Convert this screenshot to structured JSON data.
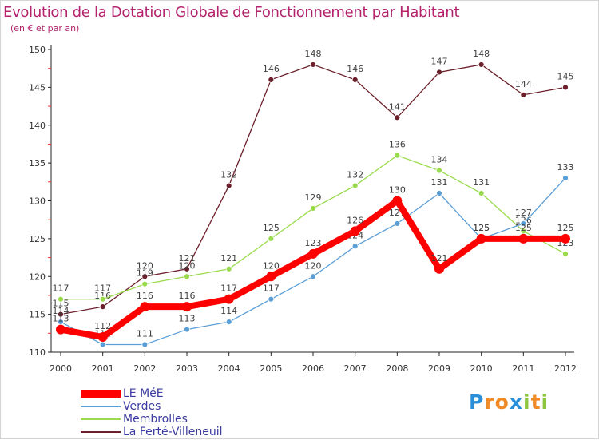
{
  "chart_data": {
    "type": "line",
    "title": "Evolution de la Dotation Globale de Fonctionnement par Habitant",
    "subtitle": "(en € et par an)",
    "xlabel": "",
    "ylabel": "",
    "categories": [
      "2000",
      "2001",
      "2002",
      "2003",
      "2004",
      "2005",
      "2006",
      "2007",
      "2008",
      "2009",
      "2010",
      "2011",
      "2012"
    ],
    "ylim": [
      110,
      150
    ],
    "yticks": [
      110,
      115,
      120,
      125,
      130,
      135,
      140,
      145,
      150
    ],
    "yticks_labels": [
      "110",
      "115",
      "120",
      "125",
      "130",
      "135",
      "140",
      "145",
      "150"
    ],
    "grid": false,
    "legend_position": "bottom-left",
    "series": [
      {
        "name": "La Ferté-Villeneuil",
        "color": "#6b1f2a",
        "values": [
          115,
          116,
          120,
          121,
          132,
          146,
          148,
          146,
          141,
          147,
          148,
          144,
          145
        ],
        "labels": [
          "115",
          "116",
          "120",
          "121",
          "132",
          "146",
          "148",
          "146",
          "141",
          "147",
          "148",
          "144",
          "145"
        ]
      },
      {
        "name": "Membrolles",
        "color": "#99db4c",
        "values": [
          117,
          117,
          119,
          120,
          121,
          125,
          129,
          132,
          136,
          134,
          131,
          126,
          123
        ],
        "labels": [
          "117",
          "117",
          "119",
          "120",
          "121",
          "125",
          "129",
          "132",
          "136",
          "134",
          "131",
          "126",
          "123"
        ]
      },
      {
        "name": "Verdes",
        "color": "#5b9ed6",
        "values": [
          114,
          111,
          111,
          113,
          114,
          117,
          120,
          124,
          127,
          131,
          125,
          127,
          133
        ],
        "labels": [
          "114",
          "111",
          "111",
          "113",
          "114",
          "117",
          "120",
          "124",
          "127",
          "131",
          "125",
          "127",
          "133"
        ]
      },
      {
        "name": "LE MéE",
        "color": "#ff0000",
        "values": [
          113,
          112,
          116,
          116,
          117,
          120,
          123,
          126,
          130,
          121,
          125,
          125,
          125
        ],
        "labels": [
          "113",
          "112",
          "116",
          "116",
          "117",
          "120",
          "123",
          "126",
          "130",
          "121",
          "125",
          "125",
          "125"
        ]
      }
    ],
    "legend_order": [
      "LE MéE",
      "Verdes",
      "Membrolles",
      "La Ferté-Villeneuil"
    ]
  },
  "legend": {
    "items": [
      {
        "label": "LE MéE",
        "color": "#ff0000"
      },
      {
        "label": "Verdes",
        "color": "#5b9ed6"
      },
      {
        "label": "Membrolles",
        "color": "#99db4c"
      },
      {
        "label": "La Ferté-Villeneuil",
        "color": "#6b1f2a"
      }
    ],
    "text_color": "#3a3aa0"
  },
  "logo": {
    "letters": [
      "P",
      "r",
      "o",
      "x",
      "i",
      "t",
      "i"
    ],
    "colors": [
      "#2a8fd8",
      "#f08a24",
      "#f08a24",
      "#2a8fd8",
      "#8cc63f",
      "#f08a24",
      "#8cc63f"
    ]
  },
  "colors": {
    "title": "#b4246e",
    "axis_text": "#303030",
    "axis_tick_red": "#ff3333",
    "label_text": "#404040"
  }
}
